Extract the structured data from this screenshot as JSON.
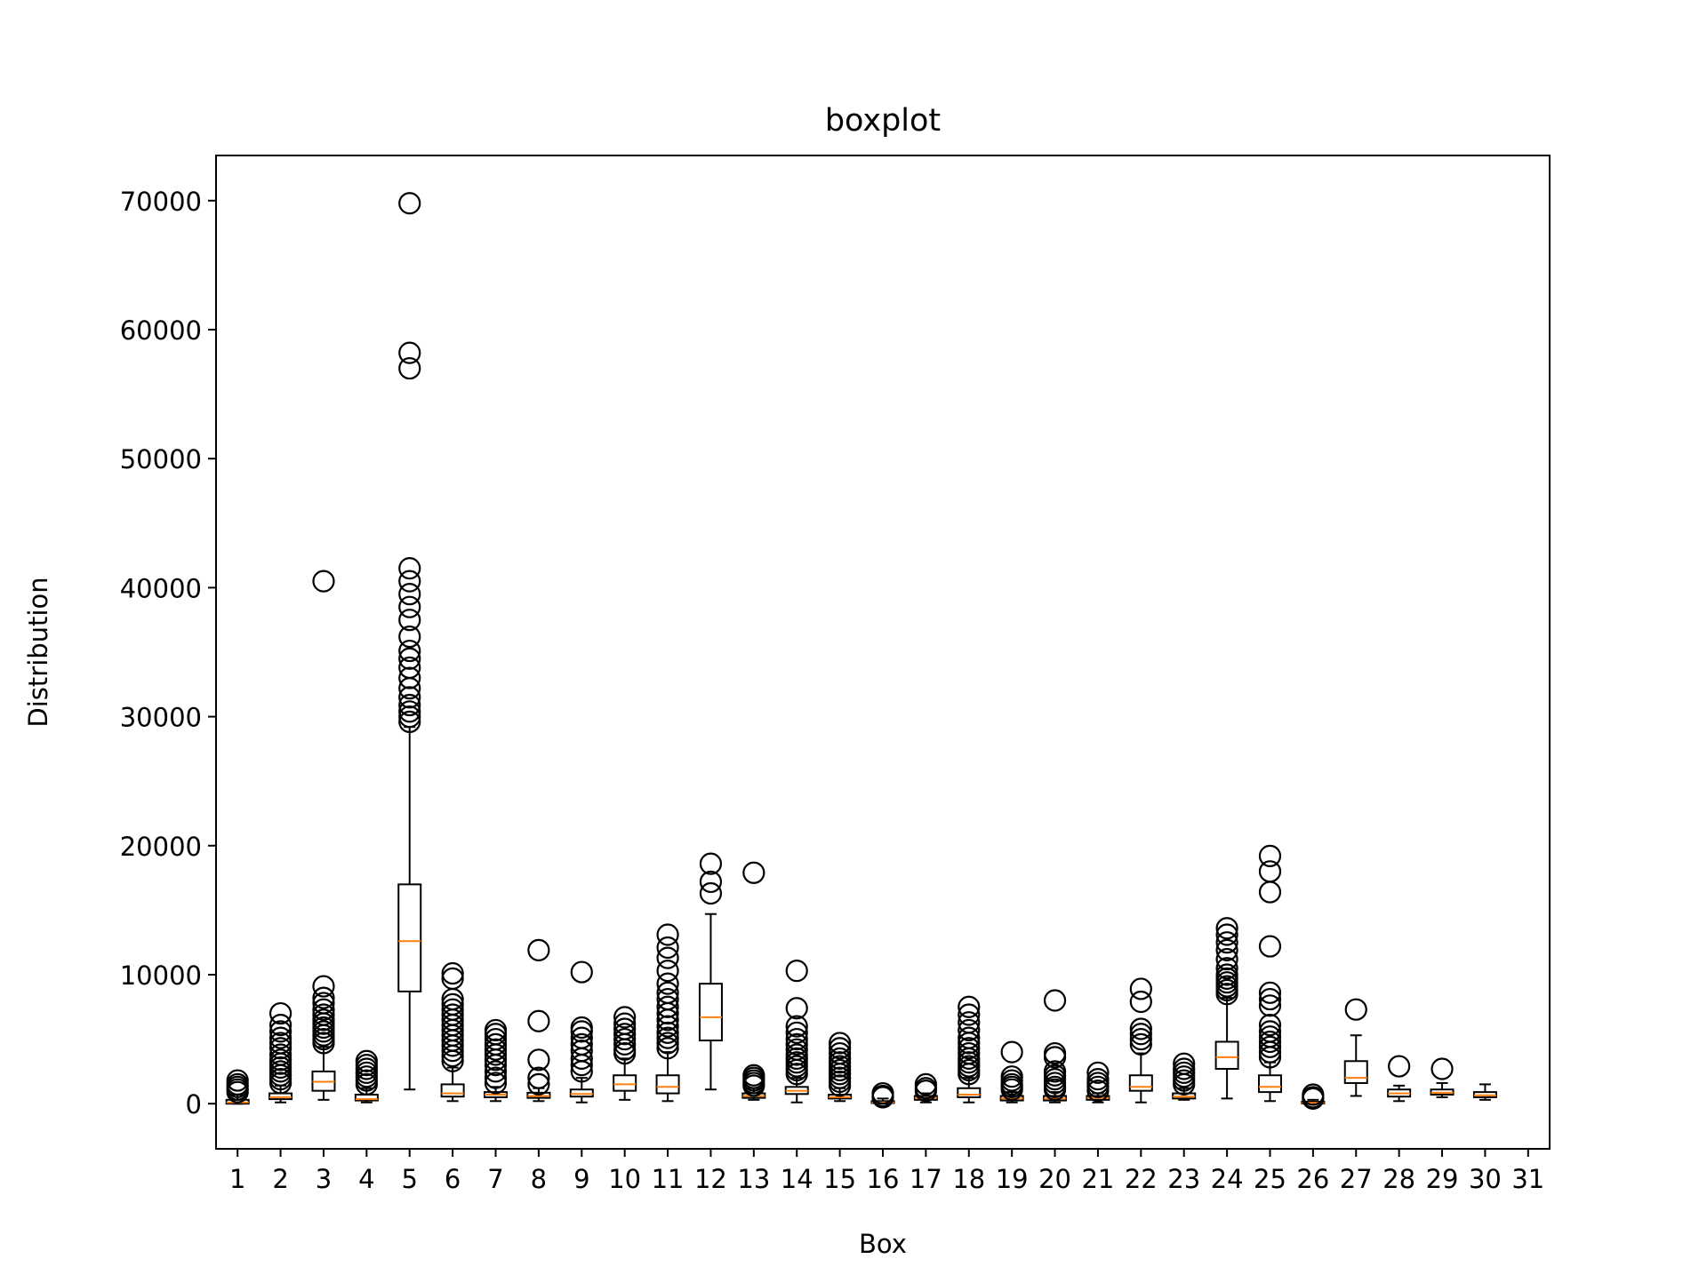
{
  "chart_data": {
    "type": "boxplot",
    "title": "boxplot",
    "xlabel": "Box",
    "ylabel": "Distribution",
    "ylim": [
      -3500,
      73500
    ],
    "y_ticks": [
      0,
      10000,
      20000,
      30000,
      40000,
      50000,
      60000,
      70000
    ],
    "y_tick_labels": [
      "0",
      "10000",
      "20000",
      "30000",
      "40000",
      "50000",
      "60000",
      "70000"
    ],
    "xlim": [
      0.5,
      31.5
    ],
    "categories": [
      "1",
      "2",
      "3",
      "4",
      "5",
      "6",
      "7",
      "8",
      "9",
      "10",
      "11",
      "12",
      "13",
      "14",
      "15",
      "16",
      "17",
      "18",
      "19",
      "20",
      "21",
      "22",
      "23",
      "24",
      "25",
      "26",
      "27",
      "28",
      "29",
      "30",
      "31"
    ],
    "grid": false,
    "colors": {
      "box": "#000000",
      "median": "#ff7f0e",
      "flier": "#000000"
    },
    "boxes": [
      {
        "label": "1",
        "min": 0,
        "q1": 0,
        "median": 100,
        "q3": 300,
        "max": 700,
        "fliers": [
          900,
          1100,
          1300,
          1500,
          1800
        ]
      },
      {
        "label": "2",
        "min": 100,
        "q1": 350,
        "median": 500,
        "q3": 800,
        "max": 1400,
        "fliers": [
          1600,
          1900,
          2200,
          2500,
          2800,
          3100,
          3400,
          3800,
          4300,
          4700,
          5100,
          5600,
          6100,
          7000
        ]
      },
      {
        "label": "3",
        "min": 300,
        "q1": 1000,
        "median": 1700,
        "q3": 2500,
        "max": 4400,
        "fliers": [
          4700,
          5000,
          5300,
          5600,
          5900,
          6200,
          6500,
          6900,
          7300,
          7800,
          8200,
          9100,
          40500
        ]
      },
      {
        "label": "4",
        "min": 100,
        "q1": 250,
        "median": 350,
        "q3": 700,
        "max": 1200,
        "fliers": [
          1500,
          1800,
          2100,
          2400,
          2700,
          3000,
          3300
        ]
      },
      {
        "label": "5",
        "min": 1100,
        "q1": 8700,
        "median": 12600,
        "q3": 17000,
        "max": 29200,
        "fliers": [
          29600,
          30000,
          30400,
          30900,
          31500,
          32200,
          33000,
          33800,
          34500,
          35100,
          36200,
          37500,
          38500,
          39500,
          40500,
          41500,
          57000,
          58200,
          69800
        ]
      },
      {
        "label": "6",
        "min": 200,
        "q1": 550,
        "median": 800,
        "q3": 1500,
        "max": 2800,
        "fliers": [
          3300,
          3700,
          4100,
          4500,
          4900,
          5300,
          5700,
          6100,
          6500,
          6900,
          7300,
          7700,
          8100,
          9700,
          10100
        ]
      },
      {
        "label": "7",
        "min": 200,
        "q1": 500,
        "median": 700,
        "q3": 900,
        "max": 1300,
        "fliers": [
          1600,
          2000,
          2500,
          3000,
          3400,
          3800,
          4200,
          4600,
          5000,
          5400,
          5700
        ]
      },
      {
        "label": "8",
        "min": 200,
        "q1": 450,
        "median": 600,
        "q3": 850,
        "max": 1200,
        "fliers": [
          1500,
          2000,
          3400,
          6400,
          11900
        ]
      },
      {
        "label": "9",
        "min": 100,
        "q1": 550,
        "median": 750,
        "q3": 1100,
        "max": 2000,
        "fliers": [
          2500,
          3000,
          3500,
          4100,
          4600,
          5100,
          5600,
          5900,
          10200
        ]
      },
      {
        "label": "10",
        "min": 300,
        "q1": 1000,
        "median": 1500,
        "q3": 2200,
        "max": 3500,
        "fliers": [
          3900,
          4200,
          4600,
          5000,
          5400,
          5800,
          6200,
          6700
        ]
      },
      {
        "label": "11",
        "min": 200,
        "q1": 800,
        "median": 1300,
        "q3": 2200,
        "max": 4000,
        "fliers": [
          4300,
          4700,
          5100,
          5500,
          6000,
          6500,
          7000,
          7500,
          8100,
          8600,
          9300,
          10300,
          11300,
          12100,
          13100
        ]
      },
      {
        "label": "12",
        "min": 1100,
        "q1": 4900,
        "median": 6700,
        "q3": 9300,
        "max": 14700,
        "fliers": [
          16300,
          17200,
          18600
        ]
      },
      {
        "label": "13",
        "min": 300,
        "q1": 450,
        "median": 600,
        "q3": 800,
        "max": 1200,
        "fliers": [
          1400,
          1600,
          1800,
          2000,
          2200,
          17900
        ]
      },
      {
        "label": "14",
        "min": 100,
        "q1": 750,
        "median": 1000,
        "q3": 1300,
        "max": 2000,
        "fliers": [
          2300,
          2600,
          2900,
          3200,
          3500,
          3800,
          4200,
          4600,
          5000,
          5500,
          6000,
          7400,
          10300
        ]
      },
      {
        "label": "15",
        "min": 200,
        "q1": 400,
        "median": 500,
        "q3": 700,
        "max": 1200,
        "fliers": [
          1400,
          1700,
          2000,
          2300,
          2600,
          2900,
          3200,
          3500,
          3900,
          4300,
          4700
        ]
      },
      {
        "label": "16",
        "min": 0,
        "q1": 50,
        "median": 100,
        "q3": 200,
        "max": 400,
        "fliers": [
          500,
          600,
          800
        ]
      },
      {
        "label": "17",
        "min": 100,
        "q1": 300,
        "median": 450,
        "q3": 600,
        "max": 800,
        "fliers": [
          1000,
          1200,
          1500
        ]
      },
      {
        "label": "18",
        "min": 100,
        "q1": 500,
        "median": 700,
        "q3": 1200,
        "max": 2000,
        "fliers": [
          2300,
          2600,
          2900,
          3200,
          3500,
          3900,
          4300,
          4700,
          5100,
          5700,
          6300,
          6900,
          7500
        ]
      },
      {
        "label": "19",
        "min": 100,
        "q1": 250,
        "median": 400,
        "q3": 600,
        "max": 900,
        "fliers": [
          1100,
          1300,
          1500,
          1800,
          2100,
          4000
        ]
      },
      {
        "label": "20",
        "min": 100,
        "q1": 250,
        "median": 400,
        "q3": 600,
        "max": 900,
        "fliers": [
          1100,
          1300,
          1600,
          1900,
          2200,
          2500,
          3600,
          3900,
          8000
        ]
      },
      {
        "label": "21",
        "min": 100,
        "q1": 300,
        "median": 450,
        "q3": 600,
        "max": 800,
        "fliers": [
          1000,
          1300,
          1600,
          1900,
          2400
        ]
      },
      {
        "label": "22",
        "min": 100,
        "q1": 1000,
        "median": 1300,
        "q3": 2200,
        "max": 3900,
        "fliers": [
          4600,
          5000,
          5400,
          5800,
          7900,
          8900
        ]
      },
      {
        "label": "23",
        "min": 300,
        "q1": 400,
        "median": 550,
        "q3": 800,
        "max": 1200,
        "fliers": [
          1500,
          1800,
          2100,
          2400,
          2700,
          3100
        ]
      },
      {
        "label": "24",
        "min": 400,
        "q1": 2700,
        "median": 3600,
        "q3": 4800,
        "max": 8200,
        "fliers": [
          8500,
          8800,
          9100,
          9400,
          9700,
          10000,
          10500,
          11200,
          11900,
          12500,
          13100,
          13600
        ]
      },
      {
        "label": "25",
        "min": 200,
        "q1": 900,
        "median": 1300,
        "q3": 2200,
        "max": 3200,
        "fliers": [
          3600,
          4000,
          4400,
          4800,
          5200,
          5600,
          6100,
          7600,
          8100,
          8600,
          12200,
          16400,
          18000,
          19200
        ]
      },
      {
        "label": "26",
        "min": 0,
        "q1": 20,
        "median": 60,
        "q3": 150,
        "max": 300,
        "fliers": [
          400,
          500,
          700
        ]
      },
      {
        "label": "27",
        "min": 600,
        "q1": 1600,
        "median": 2000,
        "q3": 3300,
        "max": 5300,
        "fliers": [
          7300
        ]
      },
      {
        "label": "28",
        "min": 200,
        "q1": 550,
        "median": 800,
        "q3": 1100,
        "max": 1400,
        "fliers": [
          2900
        ]
      },
      {
        "label": "29",
        "min": 500,
        "q1": 700,
        "median": 850,
        "q3": 1100,
        "max": 1600,
        "fliers": [
          2700
        ]
      },
      {
        "label": "30",
        "min": 300,
        "q1": 500,
        "median": 650,
        "q3": 900,
        "max": 1500,
        "fliers": []
      },
      {
        "label": "31",
        "min": null,
        "q1": null,
        "median": null,
        "q3": null,
        "max": null,
        "fliers": []
      }
    ]
  }
}
